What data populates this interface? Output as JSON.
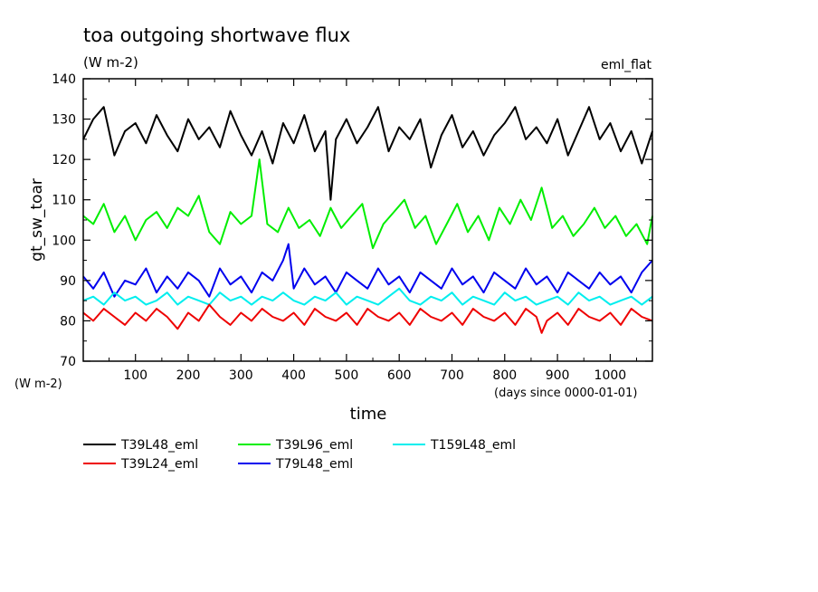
{
  "chart_data": {
    "type": "line",
    "title": "toa outgoing shortwave flux",
    "subtitle": "(W m-2)",
    "corner_label": "eml_flat",
    "xlabel": "time",
    "x_unit_label": "(days since 0000-01-01)",
    "ylabel": "gt_sw_toar",
    "y_unit_label": "(W m-2)",
    "xlim": [
      1,
      1080
    ],
    "ylim": [
      70,
      140
    ],
    "x_ticks": [
      100,
      200,
      300,
      400,
      500,
      600,
      700,
      800,
      900,
      1000
    ],
    "y_ticks": [
      70,
      80,
      90,
      100,
      110,
      120,
      130,
      140
    ],
    "grid": false,
    "legend_position": "bottom",
    "series": [
      {
        "name": "T39L48_eml",
        "color": "#000000",
        "x": [
          1,
          20,
          40,
          60,
          80,
          100,
          120,
          140,
          160,
          180,
          200,
          220,
          240,
          260,
          280,
          300,
          320,
          340,
          360,
          380,
          400,
          420,
          440,
          460,
          470,
          480,
          500,
          520,
          540,
          560,
          580,
          600,
          620,
          640,
          660,
          680,
          700,
          720,
          740,
          760,
          780,
          800,
          820,
          840,
          860,
          880,
          900,
          920,
          940,
          960,
          980,
          1000,
          1020,
          1040,
          1060,
          1080
        ],
        "values": [
          125,
          130,
          133,
          121,
          127,
          129,
          124,
          131,
          126,
          122,
          130,
          125,
          128,
          123,
          132,
          126,
          121,
          127,
          119,
          129,
          124,
          131,
          122,
          127,
          110,
          125,
          130,
          124,
          128,
          133,
          122,
          128,
          125,
          130,
          118,
          126,
          131,
          123,
          127,
          121,
          126,
          129,
          133,
          125,
          128,
          124,
          130,
          121,
          127,
          133,
          125,
          129,
          122,
          127,
          119,
          127
        ]
      },
      {
        "name": "T39L96_eml",
        "color": "#00ee00",
        "x": [
          1,
          20,
          40,
          60,
          80,
          100,
          120,
          140,
          160,
          180,
          200,
          220,
          240,
          260,
          280,
          300,
          320,
          335,
          350,
          370,
          390,
          410,
          430,
          450,
          470,
          490,
          510,
          530,
          550,
          570,
          590,
          610,
          630,
          650,
          670,
          690,
          710,
          730,
          750,
          770,
          790,
          810,
          830,
          850,
          870,
          890,
          910,
          930,
          950,
          970,
          990,
          1010,
          1030,
          1050,
          1070,
          1080
        ],
        "values": [
          106,
          104,
          109,
          102,
          106,
          100,
          105,
          107,
          103,
          108,
          106,
          111,
          102,
          99,
          107,
          104,
          106,
          120,
          104,
          102,
          108,
          103,
          105,
          101,
          108,
          103,
          106,
          109,
          98,
          104,
          107,
          110,
          103,
          106,
          99,
          104,
          109,
          102,
          106,
          100,
          108,
          104,
          110,
          105,
          113,
          103,
          106,
          101,
          104,
          108,
          103,
          106,
          101,
          104,
          99,
          106
        ]
      },
      {
        "name": "T79L48_eml",
        "color": "#0000ee",
        "x": [
          1,
          20,
          40,
          60,
          80,
          100,
          120,
          140,
          160,
          180,
          200,
          220,
          240,
          260,
          280,
          300,
          320,
          340,
          360,
          380,
          390,
          400,
          420,
          440,
          460,
          480,
          500,
          520,
          540,
          560,
          580,
          600,
          620,
          640,
          660,
          680,
          700,
          720,
          740,
          760,
          780,
          800,
          820,
          840,
          860,
          880,
          900,
          920,
          940,
          960,
          980,
          1000,
          1020,
          1040,
          1060,
          1080
        ],
        "values": [
          91,
          88,
          92,
          86,
          90,
          89,
          93,
          87,
          91,
          88,
          92,
          90,
          86,
          93,
          89,
          91,
          87,
          92,
          90,
          95,
          99,
          88,
          93,
          89,
          91,
          87,
          92,
          90,
          88,
          93,
          89,
          91,
          87,
          92,
          90,
          88,
          93,
          89,
          91,
          87,
          92,
          90,
          88,
          93,
          89,
          91,
          87,
          92,
          90,
          88,
          92,
          89,
          91,
          87,
          92,
          95
        ]
      },
      {
        "name": "T159L48_eml",
        "color": "#00eeee",
        "x": [
          1,
          20,
          40,
          60,
          80,
          100,
          120,
          140,
          160,
          180,
          200,
          220,
          240,
          260,
          280,
          300,
          320,
          340,
          360,
          380,
          400,
          420,
          440,
          460,
          480,
          500,
          520,
          540,
          560,
          580,
          600,
          620,
          640,
          660,
          680,
          700,
          720,
          740,
          760,
          780,
          800,
          820,
          840,
          860,
          880,
          900,
          920,
          940,
          960,
          980,
          1000,
          1020,
          1040,
          1060,
          1080
        ],
        "values": [
          85,
          86,
          84,
          87,
          85,
          86,
          84,
          85,
          87,
          84,
          86,
          85,
          84,
          87,
          85,
          86,
          84,
          86,
          85,
          87,
          85,
          84,
          86,
          85,
          87,
          84,
          86,
          85,
          84,
          86,
          88,
          85,
          84,
          86,
          85,
          87,
          84,
          86,
          85,
          84,
          87,
          85,
          86,
          84,
          85,
          86,
          84,
          87,
          85,
          86,
          84,
          85,
          86,
          84,
          86
        ]
      },
      {
        "name": "T39L24_eml",
        "color": "#ee0000",
        "x": [
          1,
          20,
          40,
          60,
          80,
          100,
          120,
          140,
          160,
          180,
          200,
          220,
          240,
          260,
          280,
          300,
          320,
          340,
          360,
          380,
          400,
          420,
          440,
          460,
          480,
          500,
          520,
          540,
          560,
          580,
          600,
          620,
          640,
          660,
          680,
          700,
          720,
          740,
          760,
          780,
          800,
          820,
          840,
          860,
          870,
          880,
          900,
          920,
          940,
          960,
          980,
          1000,
          1020,
          1040,
          1060,
          1080
        ],
        "values": [
          82,
          80,
          83,
          81,
          79,
          82,
          80,
          83,
          81,
          78,
          82,
          80,
          84,
          81,
          79,
          82,
          80,
          83,
          81,
          80,
          82,
          79,
          83,
          81,
          80,
          82,
          79,
          83,
          81,
          80,
          82,
          79,
          83,
          81,
          80,
          82,
          79,
          83,
          81,
          80,
          82,
          79,
          83,
          81,
          77,
          80,
          82,
          79,
          83,
          81,
          80,
          82,
          79,
          83,
          81,
          80
        ]
      }
    ],
    "legend": [
      {
        "label": "T39L48_eml",
        "color": "#000000"
      },
      {
        "label": "T39L96_eml",
        "color": "#00ee00"
      },
      {
        "label": "T159L48_eml",
        "color": "#00eeee"
      },
      {
        "label": "T39L24_eml",
        "color": "#ee0000"
      },
      {
        "label": "T79L48_eml",
        "color": "#0000ee"
      }
    ]
  }
}
